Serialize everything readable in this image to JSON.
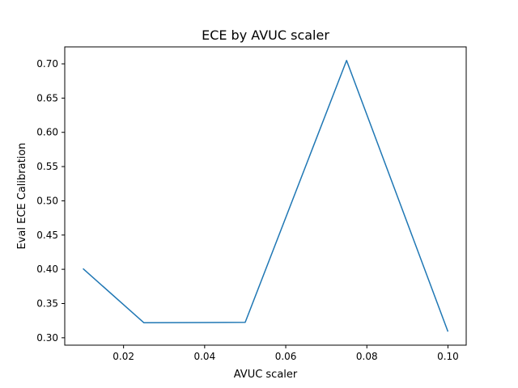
{
  "chart_data": {
    "type": "line",
    "title": "ECE by AVUC scaler",
    "xlabel": "AVUC scaler",
    "ylabel": "Eval ECE Calibration",
    "x": [
      0.01,
      0.025,
      0.05,
      0.075,
      0.1
    ],
    "series": [
      {
        "values": [
          0.401,
          0.322,
          0.3225,
          0.705,
          0.309
        ],
        "color": "#1f77b4"
      }
    ],
    "xlim": [
      0.0055,
      0.1045
    ],
    "ylim": [
      0.2892,
      0.7248
    ],
    "xticks": [
      0.02,
      0.04,
      0.06,
      0.08,
      0.1
    ],
    "xtick_labels": [
      "0.02",
      "0.04",
      "0.06",
      "0.08",
      "0.10"
    ],
    "yticks": [
      0.3,
      0.35,
      0.4,
      0.45,
      0.5,
      0.55,
      0.6,
      0.65,
      0.7
    ],
    "ytick_labels": [
      "0.30",
      "0.35",
      "0.40",
      "0.45",
      "0.50",
      "0.55",
      "0.60",
      "0.65",
      "0.70"
    ],
    "grid": false,
    "legend": "none"
  }
}
